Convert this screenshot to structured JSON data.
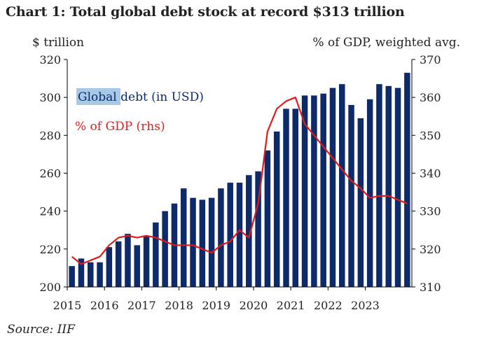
{
  "colors": {
    "bar": "#0d2b6b",
    "line": "#e01b1b",
    "highlight": "#a8c8e8",
    "axis": "#000000"
  },
  "chart_data": {
    "type": "bar",
    "title": "Chart 1: Total global debt stock at record $313 trillion",
    "ylabel_left": "$ trillion",
    "ylabel_right": "% of GDP, weighted avg.",
    "source": "Source: IIF",
    "ylim_left": [
      200,
      320
    ],
    "ylim_right": [
      310,
      370
    ],
    "yticks_left": [
      200,
      220,
      240,
      260,
      280,
      300,
      320
    ],
    "yticks_right": [
      310,
      320,
      330,
      340,
      350,
      360,
      370
    ],
    "xticks": [
      "2015",
      "2016",
      "2017",
      "2018",
      "2019",
      "2020",
      "2021",
      "2022",
      "2023"
    ],
    "legend": {
      "debt_highlight": "Global",
      "debt_rest": " debt (in USD)",
      "gdp": "% of GDP (rhs)"
    },
    "series": [
      {
        "name": "Global debt (in USD)",
        "axis": "left",
        "type": "bar",
        "values": [
          211,
          215,
          213,
          213,
          221,
          224,
          228,
          222,
          227,
          234,
          240,
          244,
          252,
          247,
          246,
          247,
          252,
          255,
          255,
          259,
          261,
          272,
          282,
          294,
          294,
          301,
          301,
          302,
          305,
          307,
          296,
          289,
          299,
          307,
          306,
          305,
          313
        ]
      },
      {
        "name": "% of GDP (rhs)",
        "axis": "right",
        "type": "line",
        "values": [
          318,
          316,
          317,
          318,
          321,
          323,
          323.5,
          323,
          323.5,
          323,
          322,
          321,
          321,
          321,
          320,
          319,
          321,
          322,
          325,
          323,
          332,
          351,
          357,
          359,
          360,
          353,
          350,
          347,
          344,
          341,
          338,
          336,
          333.5,
          334,
          334,
          333,
          332
        ]
      }
    ]
  }
}
